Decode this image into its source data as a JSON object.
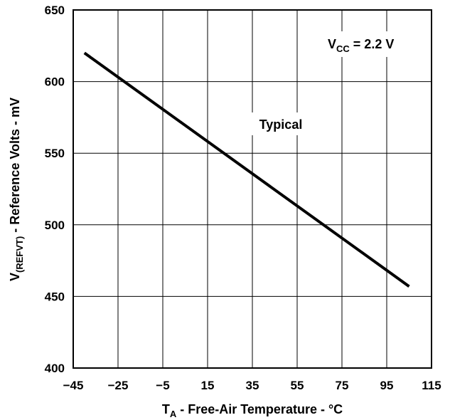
{
  "chart_data": {
    "type": "line",
    "xlabel": {
      "main": "T",
      "sub": "A",
      "rest": " - Free-Air Temperature - °C"
    },
    "ylabel": {
      "main": "V",
      "sub": "(REFVT)",
      "rest": " - Reference Volts - mV"
    },
    "xlim": [
      -45,
      115
    ],
    "ylim": [
      400,
      650
    ],
    "x_ticks": [
      -45,
      -25,
      -5,
      15,
      35,
      55,
      75,
      95,
      115
    ],
    "y_ticks": [
      400,
      450,
      500,
      550,
      600,
      650
    ],
    "grid": true,
    "series": [
      {
        "x": [
          -40,
          105
        ],
        "values": [
          620,
          457
        ]
      }
    ],
    "annotations": [
      {
        "text": "Typical",
        "x": 44,
        "y": 570
      },
      {
        "main": "V",
        "sub": "CC",
        "rest": " = 2.2 V",
        "x": 97,
        "y": 625
      }
    ]
  }
}
